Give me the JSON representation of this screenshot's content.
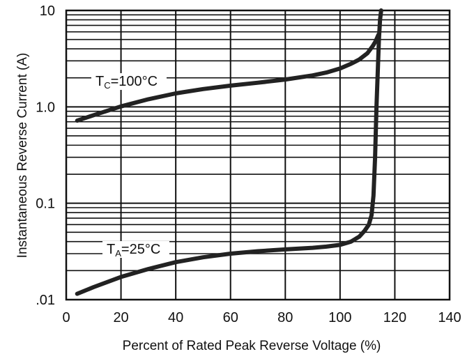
{
  "chart_data": {
    "type": "line",
    "xlabel": "Percent of Rated Peak Reverse Voltage (%)",
    "ylabel": "Instantaneous Reverse Current (A)",
    "xlim": [
      0,
      140
    ],
    "ylim": [
      0.01,
      10
    ],
    "y_scale": "log",
    "grid": true,
    "x_ticks": [
      0,
      20,
      40,
      60,
      80,
      100,
      120,
      140
    ],
    "x_tick_labels": [
      "0",
      "20",
      "40",
      "60",
      "80",
      "100",
      "120",
      "140"
    ],
    "y_ticks": [
      0.01,
      0.1,
      1,
      10
    ],
    "y_tick_labels": [
      ".01",
      "0.1",
      "1.0",
      "10"
    ],
    "series": [
      {
        "name": "TC = 100°C",
        "label_main": "T",
        "label_sub": "C",
        "label_rest": "=100°C",
        "color": "#222222",
        "x": [
          4,
          10,
          20,
          30,
          40,
          50,
          60,
          70,
          80,
          90,
          95,
          100,
          104,
          107,
          110,
          112,
          113,
          114
        ],
        "y": [
          0.72,
          0.82,
          1.01,
          1.2,
          1.38,
          1.53,
          1.66,
          1.78,
          1.92,
          2.12,
          2.27,
          2.5,
          2.8,
          3.1,
          3.6,
          4.3,
          4.8,
          5.6
        ]
      },
      {
        "name": "TA = 25°C",
        "label_main": "T",
        "label_sub": "A",
        "label_rest": "=25°C",
        "color": "#222222",
        "x": [
          4,
          10,
          20,
          30,
          40,
          50,
          60,
          70,
          80,
          90,
          95,
          100,
          104,
          107,
          109,
          110.5,
          111.5,
          112.2,
          112.8,
          113.3,
          113.8,
          114.2,
          114.6,
          115
        ],
        "y": [
          0.0115,
          0.0135,
          0.0172,
          0.0208,
          0.0245,
          0.0275,
          0.03,
          0.0318,
          0.0332,
          0.0345,
          0.0355,
          0.037,
          0.04,
          0.045,
          0.052,
          0.06,
          0.075,
          0.12,
          0.3,
          1.0,
          2.5,
          5.0,
          8.0,
          10
        ]
      }
    ]
  }
}
